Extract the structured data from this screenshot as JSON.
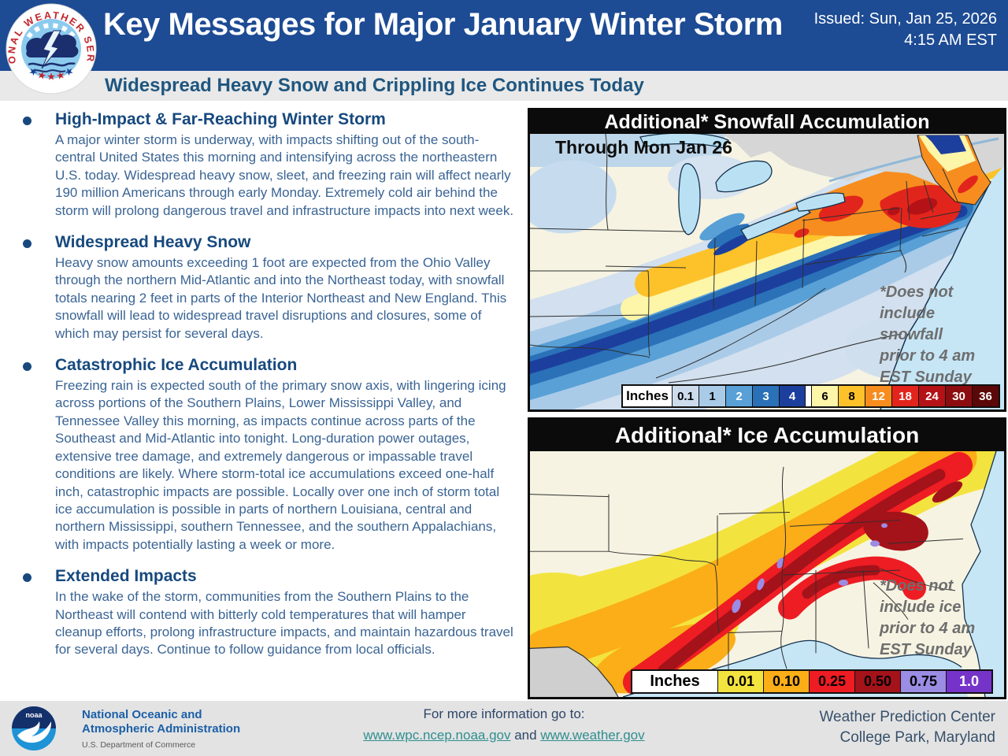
{
  "header": {
    "title": "Key Messages for Major January Winter Storm",
    "issued_line1": "Issued: Sun, Jan 25, 2026",
    "issued_line2": "4:15 AM EST",
    "subtitle": "Widespread Heavy Snow and Crippling Ice Continues Today",
    "logo_ring_text": "NATIONAL WEATHER SERVICE"
  },
  "bullets": [
    {
      "heading": "High-Impact & Far-Reaching Winter Storm",
      "body": "A major winter storm is underway, with impacts shifting out of the south-central United States this morning and intensifying across the northeastern U.S. today. Widespread heavy snow, sleet, and freezing rain will affect nearly 190 million Americans through early Monday. Extremely cold air behind the storm will prolong dangerous travel and infrastructure impacts into next week."
    },
    {
      "heading": "Widespread Heavy Snow",
      "body": "Heavy snow amounts exceeding 1 foot are expected from the Ohio Valley through the northern Mid-Atlantic and into the Northeast today, with snowfall totals nearing 2 feet in parts of the Interior Northeast and New England. This snowfall will lead to widespread travel disruptions and closures, some of which may persist for several days."
    },
    {
      "heading": "Catastrophic Ice Accumulation",
      "body": "Freezing rain is expected south of the primary snow axis, with lingering icing across portions of the Southern Plains, Lower Mississippi Valley, and Tennessee Valley this morning, as impacts continue across parts of the Southeast and Mid-Atlantic into tonight. Long-duration power outages, extensive tree damage, and extremely dangerous or impassable travel conditions are likely. Where storm-total ice accumulations exceed one-half inch, catastrophic impacts are possible. Locally over one inch of storm total ice accumulation is possible in parts of northern Louisiana, central and northern Mississippi, southern Tennessee, and the southern Appalachians, with impacts potentially lasting a week or more."
    },
    {
      "heading": "Extended Impacts",
      "body": "In the wake of the storm, communities from the Southern Plains to the Northeast will contend with bitterly cold temperatures that will hamper cleanup efforts, prolong infrastructure impacts, and maintain hazardous travel for several days. Continue to follow guidance from local officials."
    }
  ],
  "maps": {
    "snowfall": {
      "title": "Additional* Snowfall Accumulation",
      "timeframe": "Through Mon Jan 26",
      "note": "*Does not\ninclude\nsnowfall\nprior to 4 am\nEST Sunday",
      "legend_label": "Inches",
      "legend": [
        {
          "value": "0.1",
          "color": "#ccdcec",
          "text": "#000000"
        },
        {
          "value": "1",
          "color": "#a9cbe8",
          "text": "#000000"
        },
        {
          "value": "2",
          "color": "#58a0d6",
          "text": "#ffffff"
        },
        {
          "value": "3",
          "color": "#2a71b8",
          "text": "#ffffff"
        },
        {
          "value": "4",
          "color": "#1c3f9e",
          "text": "#ffffff",
          "gap_after": true
        },
        {
          "value": "6",
          "color": "#fdf5a8",
          "text": "#000000"
        },
        {
          "value": "8",
          "color": "#fdc22a",
          "text": "#000000"
        },
        {
          "value": "12",
          "color": "#f78d1e",
          "text": "#ffffff"
        },
        {
          "value": "18",
          "color": "#e2251c",
          "text": "#ffffff"
        },
        {
          "value": "24",
          "color": "#b41217",
          "text": "#ffffff"
        },
        {
          "value": "30",
          "color": "#8c0d10",
          "text": "#ffffff"
        },
        {
          "value": "36",
          "color": "#5c0708",
          "text": "#ffffff"
        }
      ]
    },
    "ice": {
      "title": "Additional* Ice Accumulation",
      "note": "*Does not\ninclude ice\nprior to 4 am\nEST Sunday",
      "legend_label": "Inches",
      "legend": [
        {
          "value": "0.01",
          "color": "#f3e33e",
          "text": "#000000"
        },
        {
          "value": "0.10",
          "color": "#fbae17",
          "text": "#000000"
        },
        {
          "value": "0.25",
          "color": "#ee1c23",
          "text": "#000000"
        },
        {
          "value": "0.50",
          "color": "#a4121a",
          "text": "#000000"
        },
        {
          "value": "0.75",
          "color": "#9b8ce4",
          "text": "#000000"
        },
        {
          "value": "1.0",
          "color": "#7633c9",
          "text": "#ffffff"
        }
      ]
    }
  },
  "footer": {
    "noaa_logo_text": "noaa",
    "noaa_name_line1": "National Oceanic and",
    "noaa_name_line2": "Atmospheric Administration",
    "noaa_dept": "U.S. Department of Commerce",
    "info_label": "For more information go to:",
    "link1": "www.wpc.ncep.noaa.gov",
    "link_join": " and ",
    "link2": "www.weather.gov",
    "credit_line1": "Weather Prediction Center",
    "credit_line2": "College Park, Maryland"
  },
  "colors": {
    "header_blue": "#1d4b94",
    "heading_navy": "#17497e",
    "body_blue": "#3a6494",
    "subtitle_blue": "#1f567f",
    "link_teal": "#2f8e8e"
  }
}
